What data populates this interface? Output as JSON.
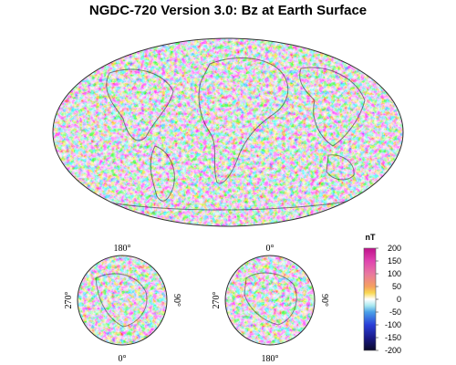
{
  "title": "NGDC-720 Version 3.0: Bz at Earth Surface",
  "north_polar": {
    "top_label": "180°",
    "bottom_label": "0°",
    "left_label": "270°",
    "right_label": "90°"
  },
  "south_polar": {
    "top_label": "0°",
    "bottom_label": "180°",
    "left_label": "270°",
    "right_label": "90°"
  },
  "colorbar": {
    "unit": "nT",
    "ticks": [
      "200",
      "150",
      "100",
      "50",
      "0",
      "-50",
      "-100",
      "-150",
      "-200"
    ],
    "tick_values": [
      200,
      150,
      100,
      50,
      0,
      -50,
      -100,
      -150,
      -200
    ],
    "stops": [
      {
        "value": 200,
        "color": "#c0128c"
      },
      {
        "value": 150,
        "color": "#e044b0"
      },
      {
        "value": 100,
        "color": "#e878a0"
      },
      {
        "value": 50,
        "color": "#f5a060"
      },
      {
        "value": 25,
        "color": "#f8d850"
      },
      {
        "value": 0,
        "color": "#ffffff"
      },
      {
        "value": -25,
        "color": "#a8e8f0"
      },
      {
        "value": -50,
        "color": "#4aa0e8"
      },
      {
        "value": -100,
        "color": "#2a3ed8"
      },
      {
        "value": -150,
        "color": "#1a1a8a"
      },
      {
        "value": -200,
        "color": "#0a0a2a"
      }
    ]
  }
}
